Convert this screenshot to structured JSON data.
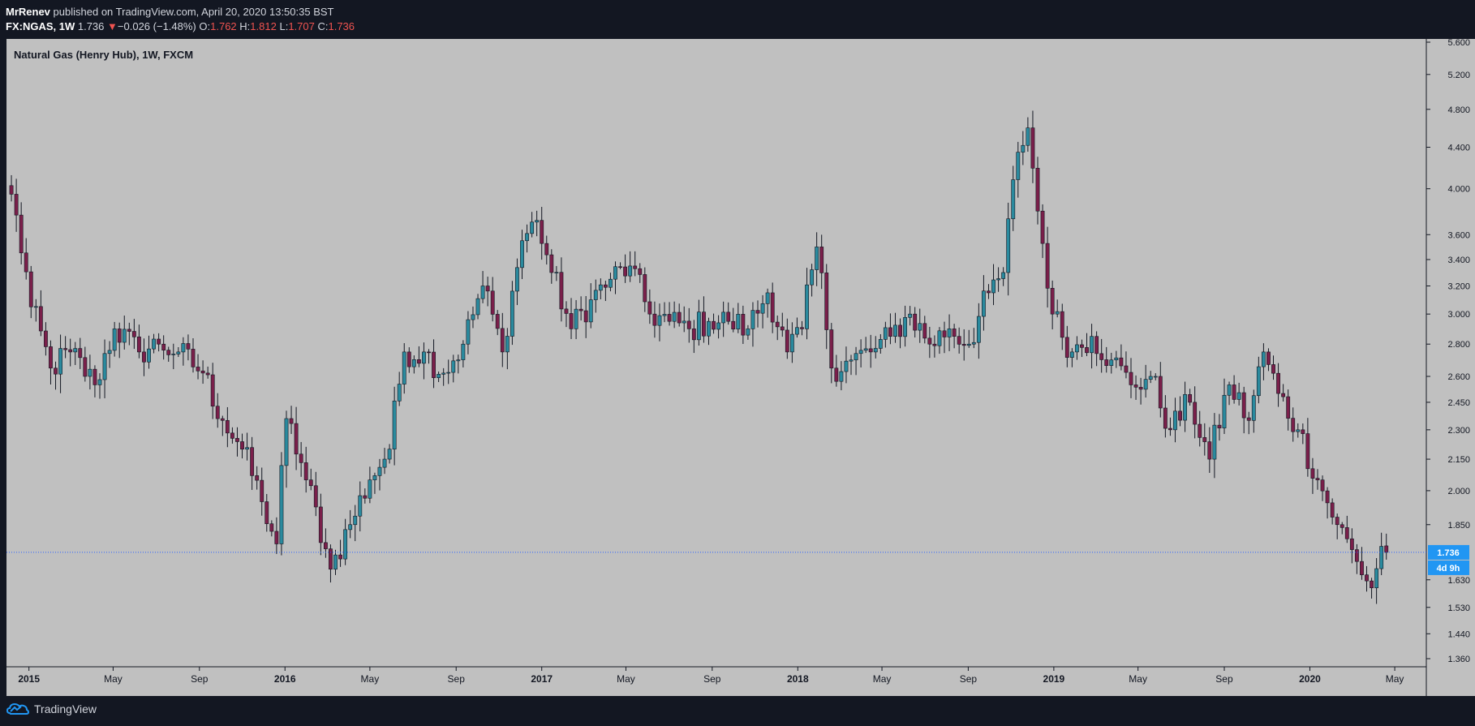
{
  "header": {
    "author": "MrRenev",
    "published": "published on TradingView.com, April 20, 2020 13:50:35 BST",
    "symbol": "FX:NGAS, 1W",
    "last": "1.736",
    "change": "−0.026 (−1.48%)",
    "open_label": "O:",
    "open": "1.762",
    "high_label": "H:",
    "high": "1.812",
    "low_label": "L:",
    "low": "1.707",
    "close_label": "C:",
    "close": "1.736"
  },
  "footer": {
    "brand": "TradingView"
  },
  "colors": {
    "background": "#c0c0c0",
    "up": "#2a8a9e",
    "down": "#7a1f4a",
    "wick": "#131722",
    "frame": "#131722",
    "price_tag": "#2196f3",
    "price_line": "#2962ff"
  },
  "chart_data": {
    "type": "candlestick",
    "title": "Natural Gas (Henry Hub), 1W, FXCM",
    "y_scale": "log",
    "ylim": [
      1.36,
      5.6
    ],
    "y_ticks": [
      "5.600",
      "5.200",
      "4.800",
      "4.400",
      "4.000",
      "3.600",
      "3.400",
      "3.200",
      "3.000",
      "2.800",
      "2.600",
      "2.450",
      "2.300",
      "2.150",
      "2.000",
      "1.850",
      "1.630",
      "1.530",
      "1.440",
      "1.360"
    ],
    "x_range": [
      "2014-11-30",
      "2020-06-15"
    ],
    "x_ticks": [
      {
        "label": "2015",
        "date": "2015-01-01",
        "major": true
      },
      {
        "label": "May",
        "date": "2015-05-01",
        "major": false
      },
      {
        "label": "Sep",
        "date": "2015-09-01",
        "major": false
      },
      {
        "label": "2016",
        "date": "2016-01-01",
        "major": true
      },
      {
        "label": "May",
        "date": "2016-05-01",
        "major": false
      },
      {
        "label": "Sep",
        "date": "2016-09-01",
        "major": false
      },
      {
        "label": "2017",
        "date": "2017-01-01",
        "major": true
      },
      {
        "label": "May",
        "date": "2017-05-01",
        "major": false
      },
      {
        "label": "Sep",
        "date": "2017-09-01",
        "major": false
      },
      {
        "label": "2018",
        "date": "2018-01-01",
        "major": true
      },
      {
        "label": "May",
        "date": "2018-05-01",
        "major": false
      },
      {
        "label": "Sep",
        "date": "2018-09-01",
        "major": false
      },
      {
        "label": "2019",
        "date": "2019-01-01",
        "major": true
      },
      {
        "label": "May",
        "date": "2019-05-01",
        "major": false
      },
      {
        "label": "Sep",
        "date": "2019-09-01",
        "major": false
      },
      {
        "label": "2020",
        "date": "2020-01-01",
        "major": true
      },
      {
        "label": "May",
        "date": "2020-05-01",
        "major": false
      }
    ],
    "last_price": "1.736",
    "countdown": "4d 9h",
    "weekly_closes": [
      {
        "date": "2014-12-07",
        "close": 3.95
      },
      {
        "date": "2015-01-04",
        "close": 3.05
      },
      {
        "date": "2015-02-01",
        "close": 2.65
      },
      {
        "date": "2015-03-01",
        "close": 2.75
      },
      {
        "date": "2015-04-05",
        "close": 2.55
      },
      {
        "date": "2015-05-03",
        "close": 2.9
      },
      {
        "date": "2015-06-07",
        "close": 2.75
      },
      {
        "date": "2015-07-05",
        "close": 2.8
      },
      {
        "date": "2015-08-02",
        "close": 2.75
      },
      {
        "date": "2015-09-06",
        "close": 2.62
      },
      {
        "date": "2015-10-04",
        "close": 2.35
      },
      {
        "date": "2015-11-01",
        "close": 2.2
      },
      {
        "date": "2015-11-29",
        "close": 1.95
      },
      {
        "date": "2015-12-20",
        "close": 1.77
      },
      {
        "date": "2016-01-03",
        "close": 2.36
      },
      {
        "date": "2016-01-31",
        "close": 2.05
      },
      {
        "date": "2016-02-28",
        "close": 1.75
      },
      {
        "date": "2016-03-06",
        "close": 1.67
      },
      {
        "date": "2016-04-03",
        "close": 1.85
      },
      {
        "date": "2016-05-01",
        "close": 2.05
      },
      {
        "date": "2016-05-29",
        "close": 2.2
      },
      {
        "date": "2016-06-19",
        "close": 2.75
      },
      {
        "date": "2016-07-17",
        "close": 2.75
      },
      {
        "date": "2016-08-14",
        "close": 2.62
      },
      {
        "date": "2016-09-11",
        "close": 2.8
      },
      {
        "date": "2016-10-09",
        "close": 3.2
      },
      {
        "date": "2016-11-06",
        "close": 2.75
      },
      {
        "date": "2016-12-04",
        "close": 3.55
      },
      {
        "date": "2016-12-25",
        "close": 3.72
      },
      {
        "date": "2017-01-15",
        "close": 3.3
      },
      {
        "date": "2017-02-12",
        "close": 2.9
      },
      {
        "date": "2017-03-12",
        "close": 3.1
      },
      {
        "date": "2017-04-09",
        "close": 3.25
      },
      {
        "date": "2017-05-07",
        "close": 3.35
      },
      {
        "date": "2017-06-04",
        "close": 3.0
      },
      {
        "date": "2017-07-02",
        "close": 2.95
      },
      {
        "date": "2017-07-30",
        "close": 2.9
      },
      {
        "date": "2017-08-27",
        "close": 2.95
      },
      {
        "date": "2017-09-24",
        "close": 2.95
      },
      {
        "date": "2017-10-22",
        "close": 2.9
      },
      {
        "date": "2017-11-19",
        "close": 3.15
      },
      {
        "date": "2017-12-17",
        "close": 2.75
      },
      {
        "date": "2018-01-07",
        "close": 2.9
      },
      {
        "date": "2018-01-28",
        "close": 3.5
      },
      {
        "date": "2018-02-18",
        "close": 2.65
      },
      {
        "date": "2018-03-18",
        "close": 2.7
      },
      {
        "date": "2018-04-15",
        "close": 2.75
      },
      {
        "date": "2018-05-13",
        "close": 2.85
      },
      {
        "date": "2018-06-10",
        "close": 3.0
      },
      {
        "date": "2018-07-08",
        "close": 2.8
      },
      {
        "date": "2018-08-05",
        "close": 2.9
      },
      {
        "date": "2018-09-02",
        "close": 2.8
      },
      {
        "date": "2018-09-30",
        "close": 3.15
      },
      {
        "date": "2018-10-21",
        "close": 3.3
      },
      {
        "date": "2018-11-11",
        "close": 4.35
      },
      {
        "date": "2018-11-25",
        "close": 4.6
      },
      {
        "date": "2018-12-09",
        "close": 3.8
      },
      {
        "date": "2018-12-30",
        "close": 3.0
      },
      {
        "date": "2019-01-27",
        "close": 2.75
      },
      {
        "date": "2019-02-24",
        "close": 2.85
      },
      {
        "date": "2019-03-24",
        "close": 2.7
      },
      {
        "date": "2019-04-21",
        "close": 2.55
      },
      {
        "date": "2019-05-19",
        "close": 2.6
      },
      {
        "date": "2019-06-16",
        "close": 2.3
      },
      {
        "date": "2019-07-14",
        "close": 2.45
      },
      {
        "date": "2019-08-11",
        "close": 2.15
      },
      {
        "date": "2019-09-08",
        "close": 2.55
      },
      {
        "date": "2019-10-06",
        "close": 2.35
      },
      {
        "date": "2019-10-27",
        "close": 2.75
      },
      {
        "date": "2019-11-17",
        "close": 2.5
      },
      {
        "date": "2019-12-15",
        "close": 2.3
      },
      {
        "date": "2020-01-12",
        "close": 2.05
      },
      {
        "date": "2020-02-09",
        "close": 1.85
      },
      {
        "date": "2020-03-08",
        "close": 1.7
      },
      {
        "date": "2020-03-29",
        "close": 1.6
      },
      {
        "date": "2020-04-12",
        "close": 1.76
      },
      {
        "date": "2020-04-19",
        "close": 1.736
      }
    ]
  }
}
